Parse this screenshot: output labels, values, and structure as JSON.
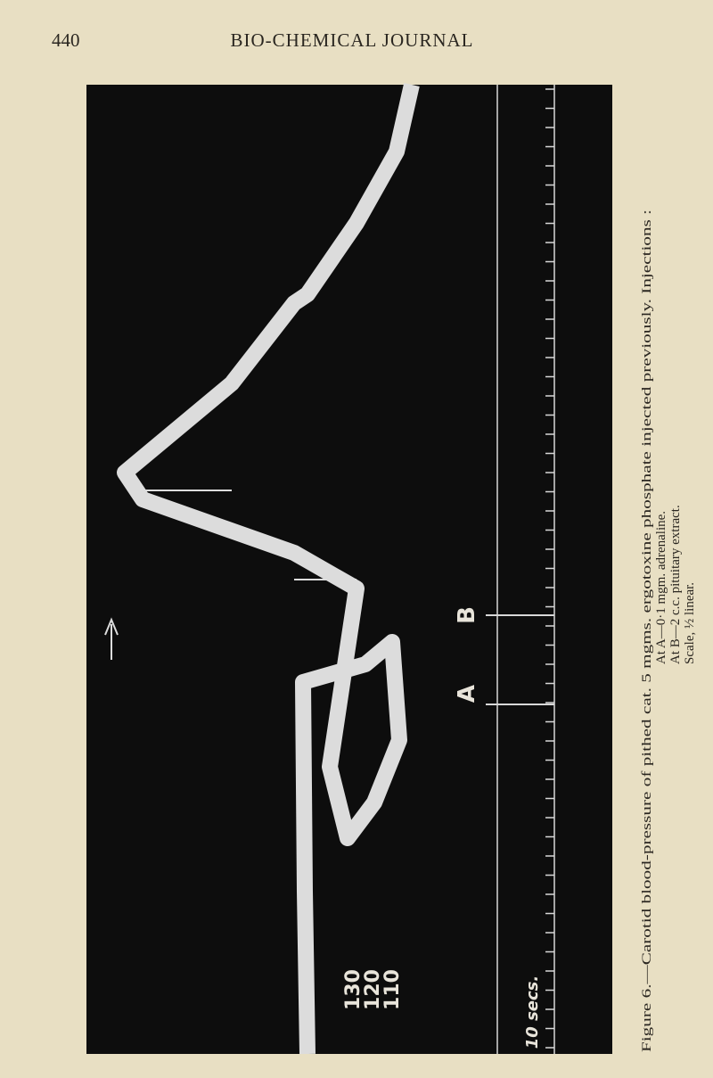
{
  "header": {
    "page_number": "440",
    "title": "BIO-CHEMICAL JOURNAL"
  },
  "figure": {
    "markers": [
      "A",
      "B"
    ],
    "scale": [
      "130",
      "120",
      "110"
    ],
    "time_scale": "10 secs."
  },
  "caption": {
    "lines": [
      "Figure 6.—Carotid blood-pressure of pithed cat.  5 mgms. ergotoxine phosphate injected previously.  Injections :",
      "At A—0·1 mgm. adrenaline.",
      "At B—2 c.c. pituitary extract.",
      "Scale, ½ linear."
    ]
  }
}
